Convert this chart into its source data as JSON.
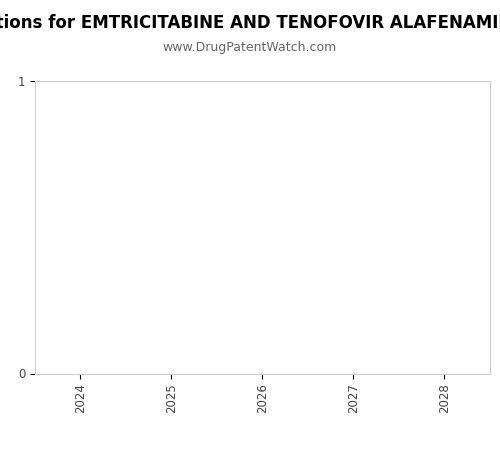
{
  "title_visible": "pirations for EMTRICITABINE AND TENOFOVIR ALAFENAMIDE FU",
  "title_full": "Patent Expirations for EMTRICITABINE AND TENOFOVIR ALAFENAMIDE FUMARATE",
  "subtitle": "www.DrugPatentWatch.com",
  "xlim": [
    2023.5,
    2028.5
  ],
  "ylim": [
    0,
    1
  ],
  "xticks": [
    2024,
    2025,
    2026,
    2027,
    2028
  ],
  "yticks": [
    0,
    1
  ],
  "background_color": "#ffffff",
  "plot_bg_color": "#ffffff",
  "border_color": "#cccccc",
  "title_fontsize": 12,
  "subtitle_fontsize": 9,
  "tick_fontsize": 8.5,
  "tick_color": "#444444"
}
